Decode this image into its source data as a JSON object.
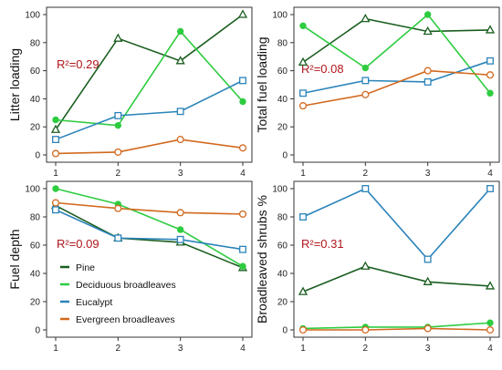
{
  "chart_data": [
    {
      "type": "line",
      "ylabel": "Litter loading",
      "annotation": "R²=0.29",
      "x": [
        1,
        2,
        3,
        4
      ],
      "ylim": [
        0,
        100
      ],
      "yticks": [
        0,
        20,
        40,
        60,
        80,
        100
      ],
      "grid": false,
      "series": [
        {
          "name": "Pine",
          "values": [
            18,
            83,
            67,
            100
          ]
        },
        {
          "name": "Deciduous broadleaves",
          "values": [
            25,
            21,
            88,
            38
          ]
        },
        {
          "name": "Eucalypt",
          "values": [
            11,
            28,
            31,
            53
          ]
        },
        {
          "name": "Evergreen broadleaves",
          "values": [
            1,
            2,
            11,
            5
          ]
        }
      ]
    },
    {
      "type": "line",
      "ylabel": "Total fuel loading",
      "annotation": "R²=0.08",
      "x": [
        1,
        2,
        3,
        4
      ],
      "ylim": [
        0,
        100
      ],
      "yticks": [
        0,
        20,
        40,
        60,
        80,
        100
      ],
      "grid": false,
      "series": [
        {
          "name": "Pine",
          "values": [
            66,
            97,
            88,
            89
          ]
        },
        {
          "name": "Deciduous broadleaves",
          "values": [
            92,
            62,
            100,
            44
          ]
        },
        {
          "name": "Eucalypt",
          "values": [
            44,
            53,
            52,
            67
          ]
        },
        {
          "name": "Evergreen broadleaves",
          "values": [
            35,
            43,
            60,
            57
          ]
        }
      ]
    },
    {
      "type": "line",
      "ylabel": "Fuel depth",
      "annotation": "R²=0.09",
      "x": [
        1,
        2,
        3,
        4
      ],
      "ylim": [
        0,
        100
      ],
      "yticks": [
        0,
        20,
        40,
        60,
        80,
        100
      ],
      "grid": false,
      "series": [
        {
          "name": "Pine",
          "values": [
            88,
            65,
            62,
            44
          ]
        },
        {
          "name": "Deciduous broadleaves",
          "values": [
            100,
            89,
            71,
            45
          ]
        },
        {
          "name": "Eucalypt",
          "values": [
            85,
            65,
            64,
            57
          ]
        },
        {
          "name": "Evergreen broadleaves",
          "values": [
            90,
            86,
            83,
            82
          ]
        }
      ]
    },
    {
      "type": "line",
      "ylabel": "Broadleaved shrubs %",
      "annotation": "R²=0.31",
      "x": [
        1,
        2,
        3,
        4
      ],
      "ylim": [
        0,
        100
      ],
      "yticks": [
        0,
        20,
        40,
        60,
        80,
        100
      ],
      "grid": false,
      "series": [
        {
          "name": "Pine",
          "values": [
            27,
            45,
            34,
            31
          ]
        },
        {
          "name": "Deciduous broadleaves",
          "values": [
            1,
            2,
            2,
            5
          ]
        },
        {
          "name": "Eucalypt",
          "values": [
            80,
            100,
            50,
            100
          ]
        },
        {
          "name": "Evergreen broadleaves",
          "values": [
            0,
            0,
            1,
            0
          ]
        }
      ]
    }
  ],
  "legend": {
    "placement": "inside bottom-left of lower-left panel",
    "items": [
      {
        "label": "Pine",
        "color": "#1b5e20",
        "marker": "triangle"
      },
      {
        "label": "Deciduous broadleaves",
        "color": "#2ecc40",
        "marker": "filled-circle"
      },
      {
        "label": "Eucalypt",
        "color": "#2b83ba",
        "marker": "square"
      },
      {
        "label": "Evergreen broadleaves",
        "color": "#d2691e",
        "marker": "circle"
      }
    ]
  },
  "colors": {
    "pine": "#1b5e20",
    "deciduous": "#2ecc40",
    "eucalypt": "#2b83ba",
    "evergreen": "#d2691e",
    "annotation": "#b0161c"
  }
}
